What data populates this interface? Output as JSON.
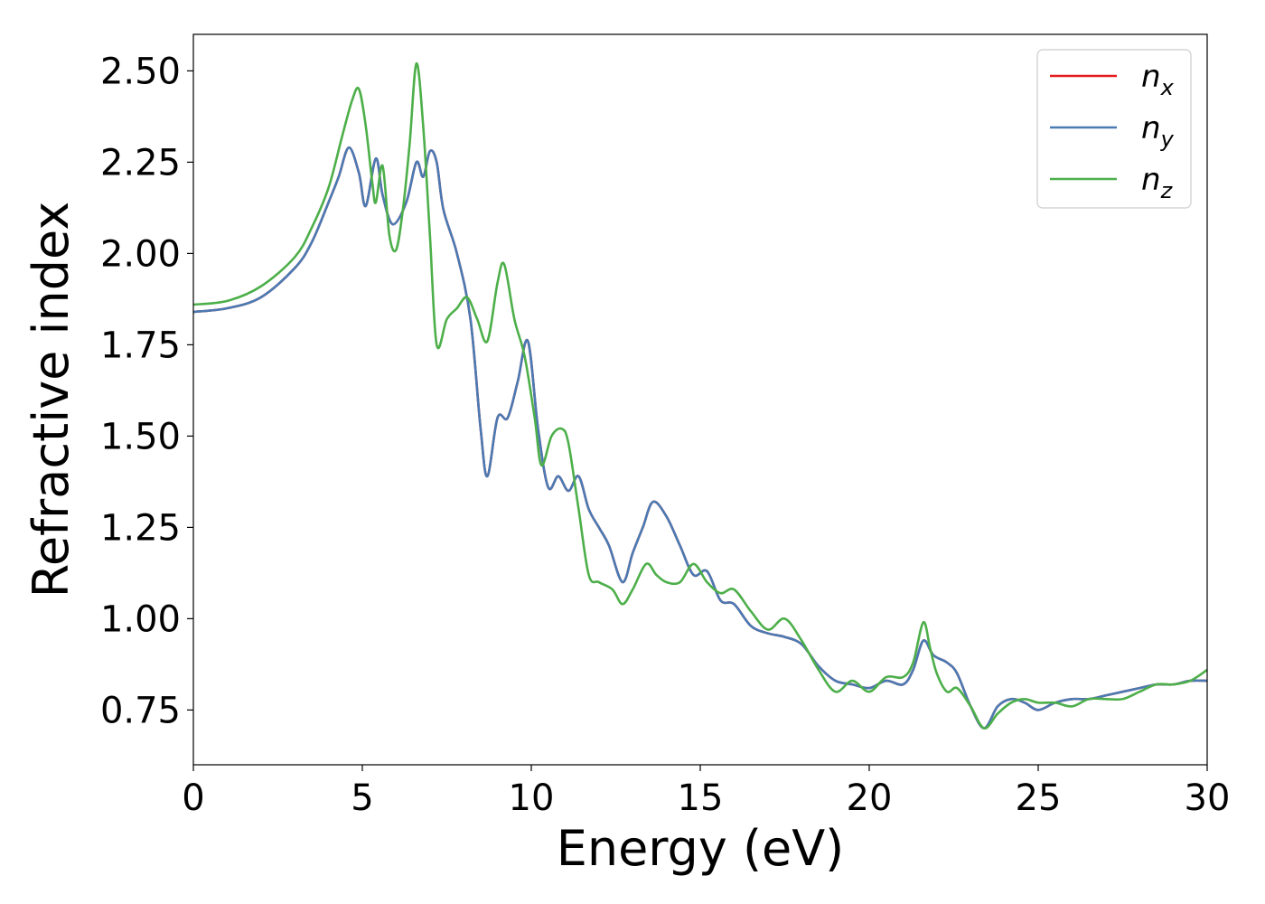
{
  "chart_data": {
    "type": "line",
    "title": "",
    "xlabel": "Energy (eV)",
    "ylabel": "Refractive index",
    "xlim": [
      0,
      30
    ],
    "ylim": [
      0.6,
      2.6
    ],
    "xticks": [
      0,
      5,
      10,
      15,
      20,
      25,
      30
    ],
    "xtick_labels": [
      "0",
      "5",
      "10",
      "15",
      "20",
      "25",
      "30"
    ],
    "yticks": [
      0.75,
      1.0,
      1.25,
      1.5,
      1.75,
      2.0,
      2.25,
      2.5
    ],
    "ytick_labels": [
      "0.75",
      "1.00",
      "1.25",
      "1.50",
      "1.75",
      "2.00",
      "2.25",
      "2.50"
    ],
    "grid": false,
    "legend": {
      "position": "top-right"
    },
    "series": [
      {
        "name": "n",
        "subscript": "x",
        "color": "#e41a1c",
        "x": [
          0,
          1,
          2,
          3,
          3.5,
          4,
          4.3,
          4.6,
          4.9,
          5.1,
          5.4,
          5.6,
          5.9,
          6.3,
          6.6,
          6.8,
          7.0,
          7.2,
          7.4,
          7.8,
          8.2,
          8.5,
          8.7,
          9.0,
          9.3,
          9.6,
          9.9,
          10.2,
          10.5,
          10.8,
          11.1,
          11.4,
          11.7,
          12.0,
          12.3,
          12.7,
          13.0,
          13.3,
          13.6,
          14.0,
          14.4,
          14.8,
          15.2,
          15.6,
          16.0,
          16.5,
          17.0,
          17.5,
          18.0,
          18.5,
          19.0,
          19.5,
          20.0,
          20.5,
          21.0,
          21.3,
          21.6,
          21.9,
          22.3,
          22.6,
          23.0,
          23.4,
          23.8,
          24.2,
          24.6,
          25.0,
          25.5,
          26.0,
          26.5,
          27.0,
          27.5,
          28.0,
          28.5,
          29.0,
          29.5,
          30.0
        ],
        "y": [
          1.84,
          1.85,
          1.88,
          1.96,
          2.03,
          2.14,
          2.21,
          2.29,
          2.22,
          2.13,
          2.26,
          2.16,
          2.08,
          2.14,
          2.25,
          2.21,
          2.28,
          2.25,
          2.12,
          2.0,
          1.82,
          1.52,
          1.39,
          1.55,
          1.55,
          1.65,
          1.76,
          1.52,
          1.36,
          1.39,
          1.35,
          1.39,
          1.3,
          1.25,
          1.2,
          1.1,
          1.18,
          1.25,
          1.32,
          1.28,
          1.2,
          1.12,
          1.13,
          1.05,
          1.04,
          0.98,
          0.96,
          0.95,
          0.93,
          0.87,
          0.83,
          0.82,
          0.81,
          0.83,
          0.82,
          0.86,
          0.94,
          0.9,
          0.88,
          0.85,
          0.76,
          0.7,
          0.76,
          0.78,
          0.77,
          0.75,
          0.77,
          0.78,
          0.78,
          0.79,
          0.8,
          0.81,
          0.82,
          0.82,
          0.83,
          0.83
        ]
      },
      {
        "name": "n",
        "subscript": "y",
        "color": "#4a7ab3",
        "x": [
          0,
          1,
          2,
          3,
          3.5,
          4,
          4.3,
          4.6,
          4.9,
          5.1,
          5.4,
          5.6,
          5.9,
          6.3,
          6.6,
          6.8,
          7.0,
          7.2,
          7.4,
          7.8,
          8.2,
          8.5,
          8.7,
          9.0,
          9.3,
          9.6,
          9.9,
          10.2,
          10.5,
          10.8,
          11.1,
          11.4,
          11.7,
          12.0,
          12.3,
          12.7,
          13.0,
          13.3,
          13.6,
          14.0,
          14.4,
          14.8,
          15.2,
          15.6,
          16.0,
          16.5,
          17.0,
          17.5,
          18.0,
          18.5,
          19.0,
          19.5,
          20.0,
          20.5,
          21.0,
          21.3,
          21.6,
          21.9,
          22.3,
          22.6,
          23.0,
          23.4,
          23.8,
          24.2,
          24.6,
          25.0,
          25.5,
          26.0,
          26.5,
          27.0,
          27.5,
          28.0,
          28.5,
          29.0,
          29.5,
          30.0
        ],
        "y": [
          1.84,
          1.85,
          1.88,
          1.96,
          2.03,
          2.14,
          2.21,
          2.29,
          2.22,
          2.13,
          2.26,
          2.16,
          2.08,
          2.14,
          2.25,
          2.21,
          2.28,
          2.25,
          2.12,
          2.0,
          1.82,
          1.52,
          1.39,
          1.55,
          1.55,
          1.65,
          1.76,
          1.52,
          1.36,
          1.39,
          1.35,
          1.39,
          1.3,
          1.25,
          1.2,
          1.1,
          1.18,
          1.25,
          1.32,
          1.28,
          1.2,
          1.12,
          1.13,
          1.05,
          1.04,
          0.98,
          0.96,
          0.95,
          0.93,
          0.87,
          0.83,
          0.82,
          0.81,
          0.83,
          0.82,
          0.86,
          0.94,
          0.9,
          0.88,
          0.85,
          0.76,
          0.7,
          0.76,
          0.78,
          0.77,
          0.75,
          0.77,
          0.78,
          0.78,
          0.79,
          0.8,
          0.81,
          0.82,
          0.82,
          0.83,
          0.83
        ]
      },
      {
        "name": "n",
        "subscript": "z",
        "color": "#4daf4a",
        "x": [
          0,
          1,
          2,
          3,
          3.5,
          4,
          4.4,
          4.7,
          4.9,
          5.1,
          5.3,
          5.4,
          5.6,
          5.8,
          6.0,
          6.2,
          6.4,
          6.6,
          6.8,
          7.0,
          7.2,
          7.5,
          7.8,
          8.1,
          8.4,
          8.7,
          9.0,
          9.2,
          9.5,
          9.8,
          10.1,
          10.3,
          10.6,
          10.9,
          11.1,
          11.4,
          11.7,
          12.0,
          12.4,
          12.7,
          13.0,
          13.4,
          13.7,
          14.0,
          14.4,
          14.8,
          15.2,
          15.6,
          16.0,
          16.5,
          17.0,
          17.5,
          18.0,
          18.5,
          19.0,
          19.5,
          20.0,
          20.5,
          21.0,
          21.3,
          21.6,
          21.8,
          22.0,
          22.3,
          22.6,
          23.0,
          23.4,
          23.8,
          24.2,
          24.6,
          25.0,
          25.5,
          26.0,
          26.5,
          27.0,
          27.5,
          28.0,
          28.5,
          29.0,
          29.5,
          30.0
        ],
        "y": [
          1.86,
          1.87,
          1.91,
          1.99,
          2.07,
          2.18,
          2.32,
          2.42,
          2.45,
          2.35,
          2.19,
          2.14,
          2.24,
          2.05,
          2.01,
          2.12,
          2.3,
          2.52,
          2.35,
          2.05,
          1.75,
          1.82,
          1.85,
          1.88,
          1.82,
          1.76,
          1.92,
          1.97,
          1.82,
          1.72,
          1.55,
          1.42,
          1.5,
          1.52,
          1.48,
          1.3,
          1.12,
          1.1,
          1.08,
          1.04,
          1.08,
          1.15,
          1.12,
          1.1,
          1.1,
          1.15,
          1.1,
          1.07,
          1.08,
          1.02,
          0.97,
          1.0,
          0.94,
          0.86,
          0.8,
          0.83,
          0.8,
          0.84,
          0.84,
          0.88,
          0.99,
          0.92,
          0.85,
          0.8,
          0.81,
          0.76,
          0.7,
          0.74,
          0.77,
          0.78,
          0.77,
          0.77,
          0.76,
          0.78,
          0.78,
          0.78,
          0.8,
          0.82,
          0.82,
          0.83,
          0.86
        ]
      }
    ]
  }
}
